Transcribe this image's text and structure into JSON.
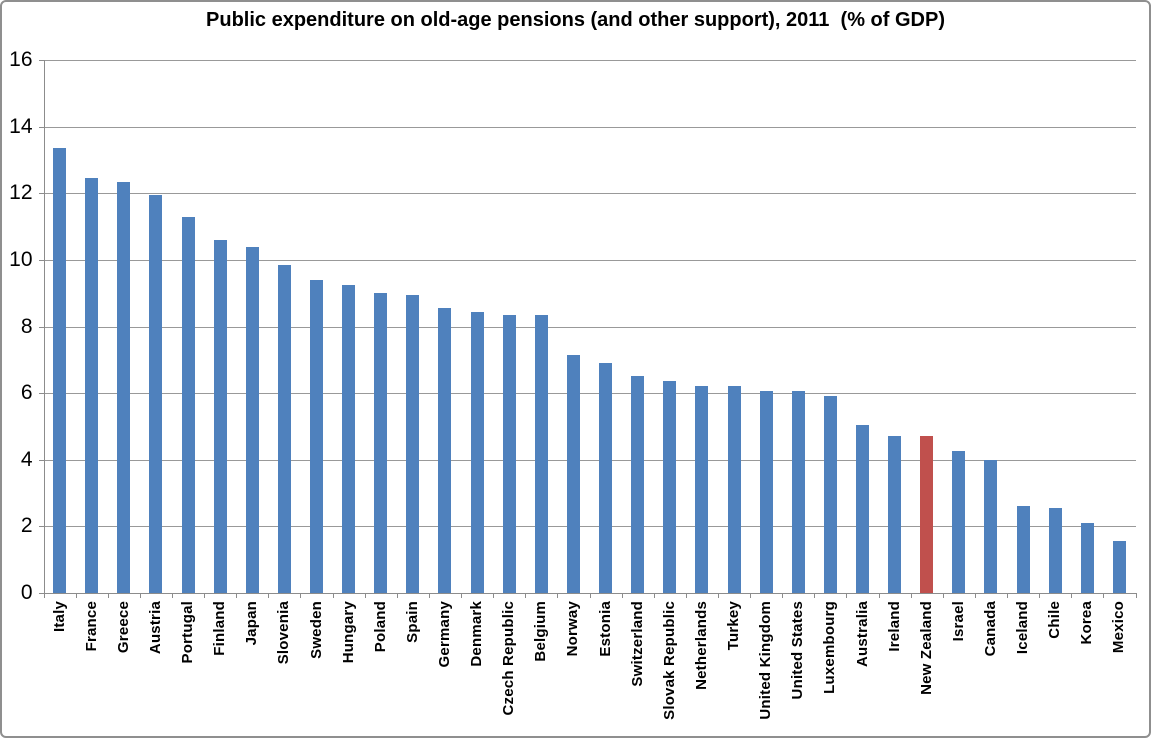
{
  "window": {
    "background": "#FFFFFF",
    "border_color": "#8F8F8F"
  },
  "chart_data": {
    "type": "bar",
    "title": "Public expenditure on old-age pensions (and other support), 2011  (% of GDP)",
    "xlabel": "",
    "ylabel": "",
    "ylim": [
      0,
      16
    ],
    "yticks": [
      0,
      2,
      4,
      6,
      8,
      10,
      12,
      14,
      16
    ],
    "grid": true,
    "legend": "none",
    "bar_color": "#4F81BD",
    "highlight_color": "#C0504D",
    "highlight_category": "New Zealand",
    "grid_color": "#999999",
    "axis_color": "#8C8C8C",
    "categories": [
      "Italy",
      "France",
      "Greece",
      "Austria",
      "Portugal",
      "Finland",
      "Japan",
      "Slovenia",
      "Sweden",
      "Hungary",
      "Poland",
      "Spain",
      "Germany",
      "Denmark",
      "Czech Republic",
      "Belgium",
      "Norway",
      "Estonia",
      "Switzerland",
      "Slovak Republic",
      "Netherlands",
      "Turkey",
      "United Kingdom",
      "United States",
      "Luxembourg",
      "Australia",
      "Ireland",
      "New Zealand",
      "Israel",
      "Canada",
      "Iceland",
      "Chile",
      "Korea",
      "Mexico"
    ],
    "values": [
      13.35,
      12.45,
      12.35,
      11.95,
      11.3,
      10.6,
      10.4,
      9.85,
      9.4,
      9.25,
      9.0,
      8.95,
      8.55,
      8.45,
      8.35,
      8.35,
      7.15,
      6.9,
      6.5,
      6.35,
      6.2,
      6.2,
      6.05,
      6.05,
      5.9,
      5.05,
      4.7,
      4.7,
      4.25,
      4.0,
      2.6,
      2.55,
      2.1,
      1.55
    ]
  }
}
